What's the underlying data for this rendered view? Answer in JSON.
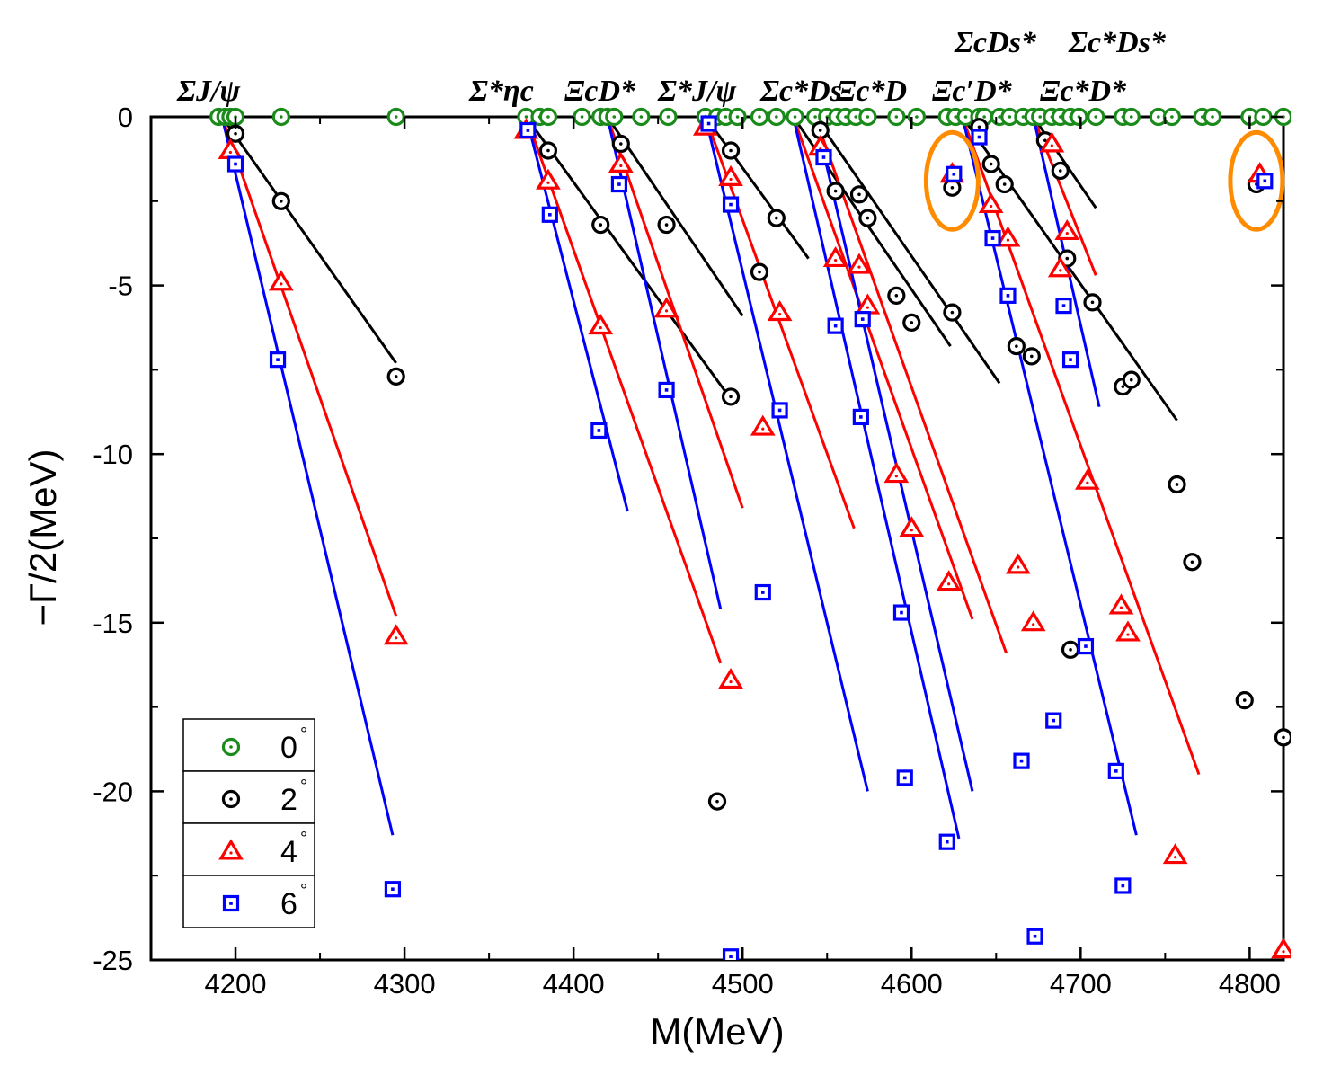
{
  "chart_data": {
    "type": "scatter",
    "xlabel": "M(MeV)",
    "ylabel": "−Γ/2(MeV)",
    "xlim": [
      4150,
      4820
    ],
    "ylim": [
      -25,
      0
    ],
    "xticks": [
      "4200",
      "4300",
      "4400",
      "4500",
      "4600",
      "4700",
      "4800"
    ],
    "yticks": [
      "0",
      "-5",
      "-10",
      "-15",
      "-20",
      "-25"
    ],
    "legend_placement": "bottom-left",
    "colors": {
      "0": "#1a8a1a",
      "2": "#000000",
      "4": "#ff0000",
      "6": "#0000ff"
    },
    "legend": [
      {
        "label": "0",
        "sup": "°",
        "marker": "circle-dot",
        "color": "#1a8a1a"
      },
      {
        "label": "2",
        "sup": "°",
        "marker": "circle-dot",
        "color": "#000000"
      },
      {
        "label": "4",
        "sup": "°",
        "marker": "triangle",
        "color": "#ff0000"
      },
      {
        "label": "6",
        "sup": "°",
        "marker": "square",
        "color": "#0000ff"
      }
    ],
    "thresholds": [
      {
        "label": "ΣJ/ψ",
        "x": 4192,
        "angles": [
          2,
          4,
          6
        ],
        "x_at_bottom": [
          4295,
          4295,
          4293
        ],
        "y_at_bottom": [
          -7.3,
          -14.8,
          -21.3
        ]
      },
      {
        "label": "Σ*ηc",
        "x": 4372,
        "angles": [
          2,
          4,
          6
        ],
        "x_at_bottom": [
          4492,
          4487,
          4432
        ],
        "y_at_bottom": [
          -8.3,
          -16.2,
          -11.7
        ]
      },
      {
        "label": "ΞcD*",
        "x": 4420,
        "angles": [
          2,
          4,
          6
        ],
        "x_at_bottom": [
          4500,
          4500,
          4487
        ],
        "y_at_bottom": [
          -5.9,
          -11.6,
          -14.6
        ]
      },
      {
        "label": "Σ*J/ψ",
        "x": 4478,
        "angles": [
          2,
          4,
          6
        ],
        "x_at_bottom": [
          4539,
          4566,
          4574
        ],
        "y_at_bottom": [
          -4.2,
          -12.2,
          -20.0
        ]
      },
      {
        "label": "Σc*Ds",
        "x": 4530,
        "angles": [
          2,
          4,
          6
        ],
        "x_at_bottom": [
          4623,
          4636,
          4628
        ],
        "y_at_bottom": [
          -6.8,
          -14.9,
          -21.4
        ]
      },
      {
        "label": "Ξc*D",
        "x": 4543,
        "angles": [
          2,
          4,
          6
        ],
        "x_at_bottom": [
          4652,
          4656,
          4636
        ],
        "y_at_bottom": [
          -7.9,
          -15.9,
          -20.0
        ]
      },
      {
        "label": "Ξc′D*",
        "x": 4630,
        "angles": [
          2,
          4,
          6
        ],
        "x_at_bottom": [
          4757,
          4770,
          4733
        ],
        "y_at_bottom": [
          -9.0,
          -19.5,
          -21.3
        ]
      },
      {
        "label": "ΣcDs*",
        "x": 4672,
        "angles": [
          2,
          4,
          6
        ],
        "x_at_bottom": [
          4709,
          4709,
          4711
        ],
        "y_at_bottom": [
          -2.7,
          -4.7,
          -8.6
        ]
      }
    ],
    "threshold_labels_top": [
      {
        "label": "ΣJ/ψ",
        "x": 4197
      },
      {
        "label": "Σ*ηc",
        "x": 4365
      },
      {
        "label": "ΞcD*",
        "x": 4423
      },
      {
        "label": "Σ*J/ψ",
        "x": 4478
      },
      {
        "label": "Σc*Ds",
        "x": 4532
      },
      {
        "label": "Ξc*D",
        "x": 4575
      },
      {
        "label": "Ξc′D*",
        "x": 4633
      },
      {
        "label": "Ξc*D*",
        "x": 4693
      },
      {
        "label": "ΣcDs*",
        "x": 4662
      },
      {
        "label": "Σc*Ds*",
        "x": 4725
      }
    ],
    "series": [
      {
        "name": "0",
        "marker": "circle-dot",
        "color": "#1a8a1a",
        "x": [
          4190,
          4194,
          4197,
          4200,
          4227,
          4295,
          4372,
          4380,
          4385,
          4405,
          4416,
          4420,
          4424,
          4440,
          4456,
          4478,
          4485,
          4490,
          4497,
          4510,
          4520,
          4531,
          4543,
          4550,
          4556,
          4561,
          4567,
          4574,
          4591,
          4603,
          4621,
          4626,
          4632,
          4640,
          4643,
          4652,
          4658,
          4666,
          4672,
          4676,
          4683,
          4688,
          4694,
          4699,
          4709,
          4725,
          4730,
          4746,
          4754,
          4772,
          4778,
          4800,
          4808,
          4820
        ],
        "y": [
          0,
          0,
          0,
          0,
          0,
          0,
          0,
          0,
          0,
          0,
          0,
          0,
          0,
          0,
          0,
          0,
          0,
          0,
          0,
          0,
          0,
          0,
          0,
          0,
          0,
          0,
          0,
          0,
          0,
          0,
          0,
          0,
          0,
          0,
          0,
          0,
          0,
          0,
          0,
          0,
          0,
          0,
          0,
          0,
          0,
          0,
          0,
          0,
          0,
          0,
          0,
          0,
          0,
          0
        ]
      },
      {
        "name": "2",
        "marker": "circle-dot",
        "color": "#000000",
        "x": [
          4200,
          4227,
          4295,
          4385,
          4416,
          4428,
          4455,
          4485,
          4493,
          4493,
          4520,
          4510,
          4546,
          4555,
          4569,
          4574,
          4591,
          4600,
          4624,
          4624,
          4640,
          4647,
          4655,
          4662,
          4671,
          4679,
          4688,
          4692,
          4694,
          4707,
          4725,
          4730,
          4757,
          4766,
          4797,
          4804,
          4820
        ],
        "y": [
          -0.5,
          -2.5,
          -7.7,
          -1.0,
          -3.2,
          -0.8,
          -3.2,
          -20.3,
          -8.3,
          -1.0,
          -3.0,
          -4.6,
          -0.4,
          -2.2,
          -2.3,
          -3.0,
          -5.3,
          -6.1,
          -5.8,
          -2.1,
          -0.3,
          -1.4,
          -2.0,
          -6.8,
          -7.1,
          -0.7,
          -1.6,
          -4.2,
          -15.8,
          -5.5,
          -8.0,
          -7.8,
          -10.9,
          -13.2,
          -17.3,
          -2.0,
          -18.4
        ]
      },
      {
        "name": "4",
        "marker": "triangle",
        "color": "#ff0000",
        "x": [
          4197,
          4227,
          4295,
          4372,
          4385,
          4416,
          4428,
          4455,
          4478,
          4493,
          4493,
          4512,
          4522,
          4546,
          4555,
          4569,
          4574,
          4591,
          4600,
          4622,
          4624,
          4647,
          4657,
          4663,
          4672,
          4683,
          4688,
          4692,
          4704,
          4724,
          4728,
          4756,
          4806,
          4820
        ],
        "y": [
          -1.0,
          -4.9,
          -15.4,
          -0.4,
          -1.9,
          -6.2,
          -1.4,
          -5.7,
          -0.3,
          -1.8,
          -16.7,
          -9.2,
          -5.8,
          -0.9,
          -4.2,
          -4.4,
          -5.6,
          -10.6,
          -12.2,
          -13.8,
          -1.7,
          -2.6,
          -3.6,
          -13.3,
          -15.0,
          -0.8,
          -4.5,
          -3.4,
          -10.8,
          -14.5,
          -15.3,
          -21.9,
          -1.7,
          -24.7
        ]
      },
      {
        "name": "6",
        "marker": "square",
        "color": "#0000ff",
        "x": [
          4200,
          4225,
          4293,
          4373,
          4386,
          4415,
          4427,
          4455,
          4480,
          4493,
          4493,
          4512,
          4522,
          4548,
          4555,
          4571,
          4570,
          4594,
          4596,
          4621,
          4625,
          4640,
          4648,
          4657,
          4665,
          4673,
          4684,
          4690,
          4694,
          4703,
          4721,
          4725,
          4809
        ],
        "y": [
          -1.4,
          -7.2,
          -22.9,
          -0.4,
          -2.9,
          -9.3,
          -2.0,
          -8.1,
          -0.2,
          -2.6,
          -24.9,
          -14.1,
          -8.7,
          -1.2,
          -6.2,
          -6.0,
          -8.9,
          -14.7,
          -19.6,
          -21.5,
          -1.7,
          -0.6,
          -3.6,
          -5.3,
          -19.1,
          -24.3,
          -17.9,
          -5.6,
          -7.2,
          -15.7,
          -19.4,
          -22.8,
          -1.9
        ]
      }
    ],
    "annotations": [
      {
        "shape": "ellipse",
        "color": "#ff8c00",
        "x": 4624,
        "y": -1.9
      },
      {
        "shape": "ellipse",
        "color": "#ff8c00",
        "x": 4804,
        "y": -1.9
      }
    ]
  }
}
